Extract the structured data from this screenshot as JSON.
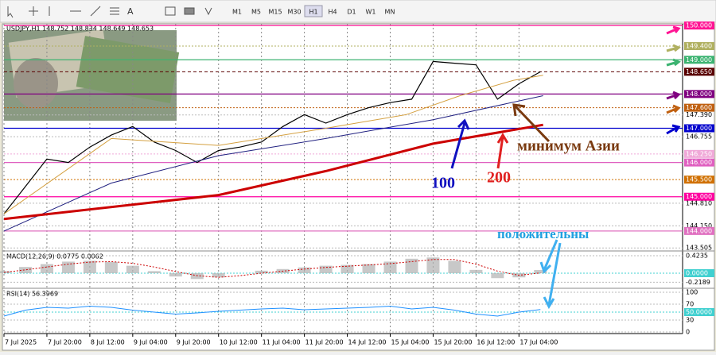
{
  "toolbar": {
    "timeframes": [
      "M1",
      "M5",
      "M15",
      "M30",
      "H1",
      "H4",
      "D1",
      "W1",
      "MN"
    ],
    "active": 4
  },
  "chart_data": [
    {
      "type": "line",
      "header": "USDJPY,H1  148.752 148.834 148.649 148.653",
      "xlim": [
        0,
        253
      ],
      "xticks": [
        {
          "value": 0,
          "label": "7 Jul 2025"
        },
        {
          "value": 16,
          "label": "7 Jul 20:00"
        },
        {
          "value": 32,
          "label": "8 Jul 12:00"
        },
        {
          "value": 48,
          "label": "9 Jul 04:00"
        },
        {
          "value": 64,
          "label": "9 Jul 20:00"
        },
        {
          "value": 80,
          "label": "10 Jul 12:00"
        },
        {
          "value": 96,
          "label": "11 Jul 04:00"
        },
        {
          "value": 112,
          "label": "11 Jul 20:00"
        },
        {
          "value": 128,
          "label": "14 Jul 12:00"
        },
        {
          "value": 144,
          "label": "15 Jul 04:00"
        },
        {
          "value": 160,
          "label": "15 Jul 20:00"
        },
        {
          "value": 176,
          "label": "16 Jul 12:00"
        },
        {
          "value": 192,
          "label": "17 Jul 04:00"
        }
      ],
      "ylim": [
        143.44,
        150.05
      ],
      "yticks": [
        {
          "value": 147.39,
          "label": "147.390"
        },
        {
          "value": 146.755,
          "label": "146.755"
        },
        {
          "value": 144.81,
          "label": "144.810"
        },
        {
          "value": 144.15,
          "label": "144.150"
        },
        {
          "value": 143.505,
          "label": "143.505"
        }
      ],
      "grid": true,
      "levels": [
        {
          "value": 150,
          "label": "150.000",
          "color": "#ff1493",
          "style": "solid"
        },
        {
          "value": 149.4,
          "label": "149.400",
          "color": "#b0b060",
          "style": "dotted"
        },
        {
          "value": 149,
          "label": "149.000",
          "color": "#3cb371",
          "style": "solid"
        },
        {
          "value": 148.65,
          "label": "148.650",
          "color": "#5a0000",
          "style": "dashed"
        },
        {
          "value": 148,
          "label": "148.000",
          "color": "#800080",
          "style": "solid"
        },
        {
          "value": 147.6,
          "label": "147.600",
          "color": "#c06010",
          "style": "dotted"
        },
        {
          "value": 147,
          "label": "147.000",
          "color": "#0000cd",
          "style": "solid"
        },
        {
          "value": 146.25,
          "label": "146.250",
          "color": "#f0a8d8",
          "style": "dotted"
        },
        {
          "value": 146,
          "label": "146.000",
          "color": "#e060c0",
          "style": "solid"
        },
        {
          "value": 145.5,
          "label": "145.500",
          "color": "#d07000",
          "style": "dotted"
        },
        {
          "value": 145,
          "label": "145.000",
          "color": "#ff00a0",
          "style": "solid"
        },
        {
          "value": 144,
          "label": "144.000",
          "color": "#e070c0",
          "style": "solid"
        }
      ],
      "series": [
        {
          "color": "#000000",
          "width": 1.2,
          "x": [
            0,
            8,
            16,
            24,
            32,
            40,
            48,
            56,
            64,
            72,
            80,
            88,
            96,
            104,
            112,
            120,
            128,
            136,
            144,
            152,
            160,
            168,
            176,
            184,
            192,
            200
          ],
          "values": [
            144.5,
            145.3,
            146.1,
            146.0,
            146.45,
            146.8,
            147.05,
            146.6,
            146.35,
            146.0,
            146.35,
            146.45,
            146.6,
            147.05,
            147.4,
            147.15,
            147.4,
            147.6,
            147.75,
            147.85,
            148.95,
            148.9,
            148.85,
            147.85,
            148.3,
            148.65
          ]
        },
        {
          "color": "#d4a040",
          "width": 1,
          "x": [
            0,
            40,
            80,
            120,
            150,
            170,
            190,
            201
          ],
          "values": [
            144.5,
            146.7,
            146.5,
            147.0,
            147.4,
            147.95,
            148.4,
            148.55
          ]
        },
        {
          "color": "#202080",
          "width": 1,
          "x": [
            0,
            40,
            80,
            120,
            160,
            201
          ],
          "values": [
            144.0,
            145.4,
            146.2,
            146.7,
            147.25,
            147.95
          ]
        },
        {
          "color": "#cc0000",
          "width": 3,
          "x": [
            0,
            80,
            120,
            160,
            201
          ],
          "values": [
            144.35,
            145.05,
            145.75,
            146.55,
            147.1
          ]
        }
      ],
      "annotations": [
        {
          "text": "100",
          "color": "#1010c0"
        },
        {
          "text": "200",
          "color": "#e02020"
        },
        {
          "text": "минимум Азии",
          "color": "#7a3a10"
        },
        {
          "text": "положительны",
          "color": "#20a0e0"
        }
      ]
    },
    {
      "type": "bar",
      "header": "MACD(12,26,9) 0.0775 0.0062",
      "ylim": [
        -0.346,
        0.519
      ],
      "yticks": [
        0.4235,
        {
          "value": 0,
          "label": "0.0000"
        },
        -0.2189
      ],
      "x": [
        0,
        8,
        16,
        24,
        32,
        40,
        48,
        56,
        64,
        72,
        80,
        88,
        96,
        104,
        112,
        120,
        128,
        136,
        144,
        152,
        160,
        168,
        176,
        184,
        192,
        200
      ],
      "values": [
        0.05,
        0.15,
        0.22,
        0.28,
        0.3,
        0.27,
        0.18,
        0.05,
        -0.08,
        -0.14,
        -0.1,
        0,
        0.06,
        0.1,
        0.14,
        0.18,
        0.2,
        0.22,
        0.28,
        0.35,
        0.38,
        0.3,
        0.08,
        -0.12,
        -0.1,
        0.0775
      ],
      "color": "#b0b0b0",
      "signal": {
        "color": "#cc0000",
        "values": [
          0.02,
          0.08,
          0.15,
          0.22,
          0.27,
          0.28,
          0.24,
          0.15,
          0.04,
          -0.06,
          -0.1,
          -0.06,
          0,
          0.05,
          0.1,
          0.14,
          0.17,
          0.2,
          0.23,
          0.28,
          0.33,
          0.33,
          0.22,
          0.05,
          -0.05,
          0.0062
        ]
      }
    },
    {
      "type": "line",
      "header": "RSI(14) 56.3969",
      "ylim": [
        -4,
        108
      ],
      "yticks": [
        100,
        70,
        {
          "value": 50,
          "label": "50.0000"
        },
        30,
        0
      ],
      "series": [
        {
          "color": "#1e90ff",
          "width": 1,
          "x": [
            0,
            8,
            16,
            24,
            32,
            40,
            48,
            56,
            64,
            72,
            80,
            88,
            96,
            104,
            112,
            120,
            128,
            136,
            144,
            152,
            160,
            168,
            176,
            184,
            192,
            200
          ],
          "values": [
            40,
            55,
            62,
            60,
            65,
            62,
            55,
            50,
            45,
            48,
            52,
            55,
            58,
            60,
            56,
            58,
            60,
            62,
            65,
            58,
            62,
            55,
            45,
            40,
            50,
            56.4
          ]
        }
      ]
    }
  ]
}
